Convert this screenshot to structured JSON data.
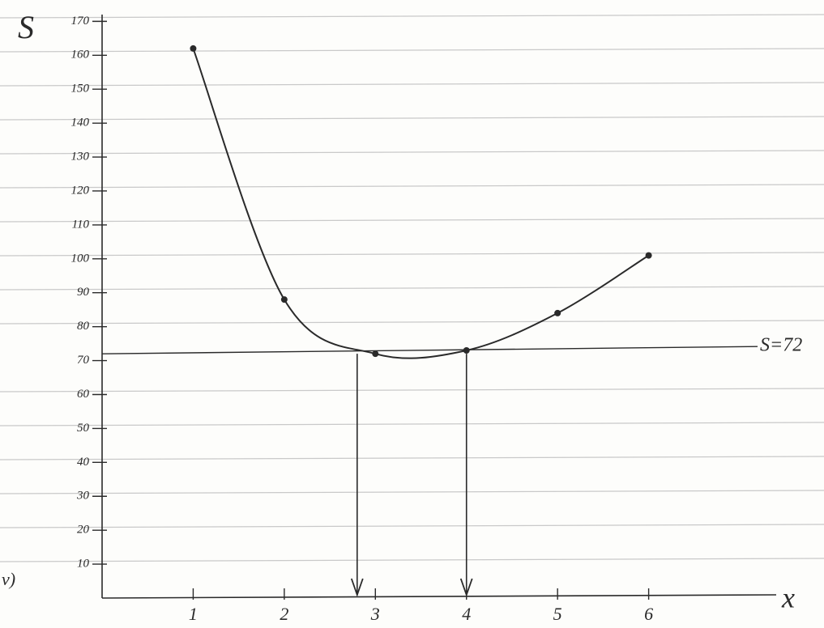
{
  "chart_data": {
    "type": "line",
    "y_label": "S",
    "x_label": "x",
    "part_label": "v)",
    "x": [
      1,
      2,
      3,
      4,
      5,
      6
    ],
    "series": [
      {
        "color": "#2a2a2a",
        "values": [
          162,
          88,
          72,
          73,
          84,
          101
        ]
      }
    ],
    "xlim": [
      0,
      7.4
    ],
    "ylim": [
      0,
      172
    ],
    "xticks": [
      1,
      2,
      3,
      4,
      5,
      6
    ],
    "yticks": [
      10,
      20,
      30,
      40,
      50,
      60,
      70,
      80,
      90,
      100,
      110,
      120,
      130,
      140,
      150,
      160,
      170
    ],
    "reference_line": {
      "value": 72,
      "label": "S=72"
    },
    "arrows_x": [
      2.8,
      4
    ]
  }
}
